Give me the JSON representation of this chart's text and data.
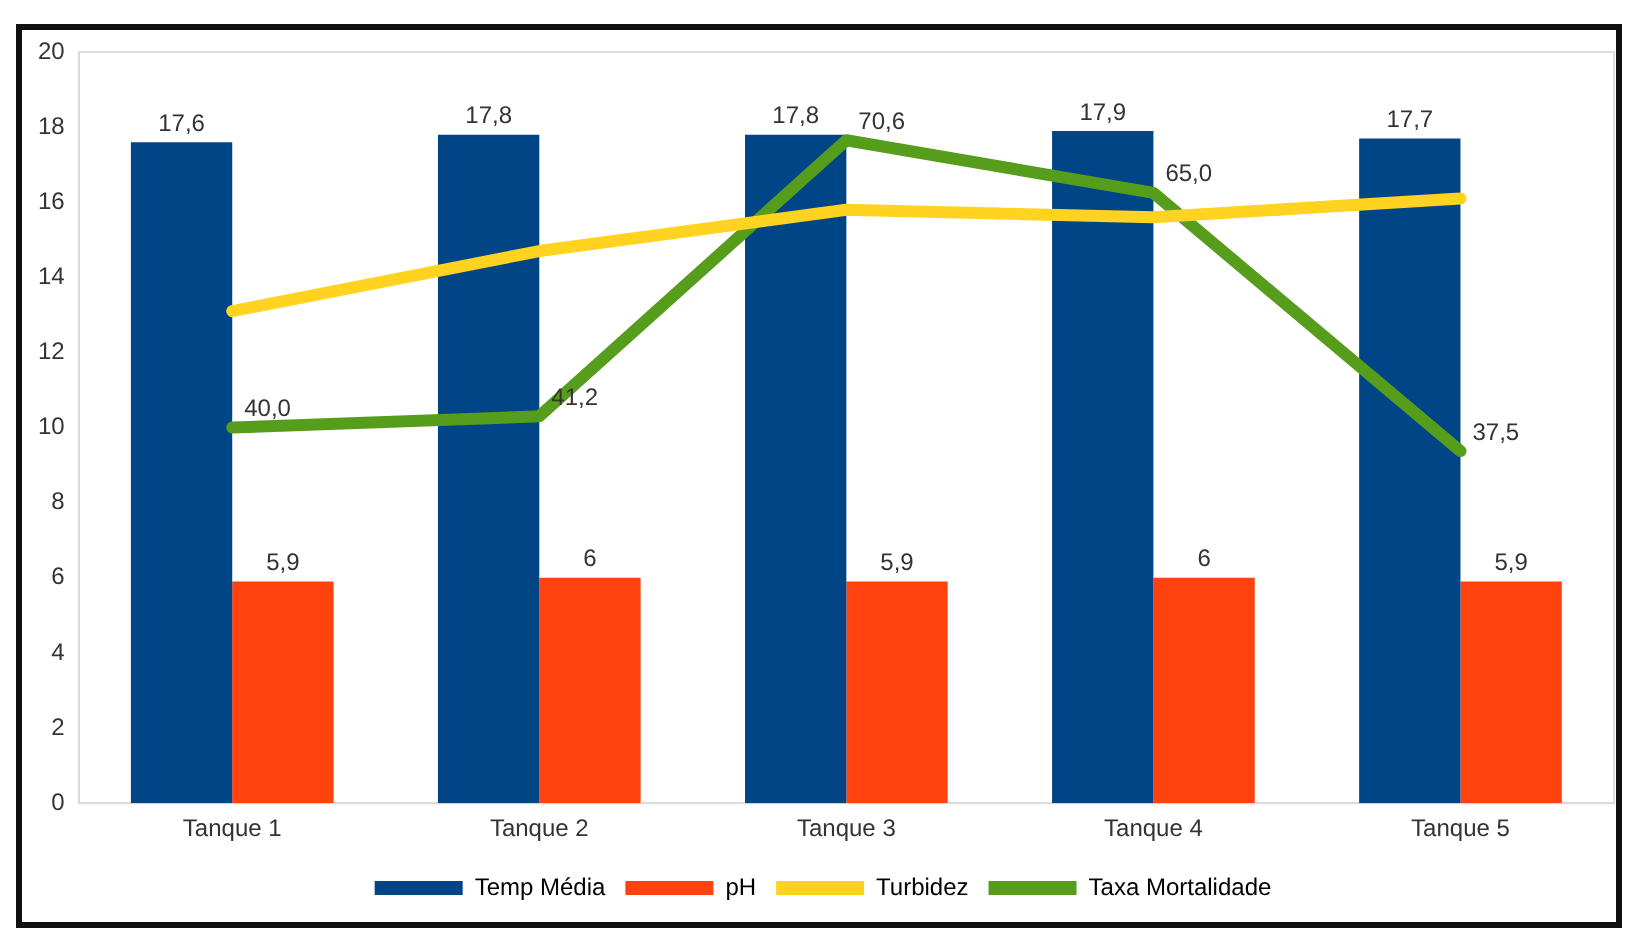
{
  "chart_data": {
    "type": "bar",
    "categories": [
      "Tanque 1",
      "Tanque 2",
      "Tanque 3",
      "Tanque 4",
      "Tanque 5"
    ],
    "series": [
      {
        "name": "Temp Média",
        "color": "#004586",
        "values": [
          17.6,
          17.8,
          17.8,
          17.9,
          17.7
        ],
        "value_labels": [
          "17,6",
          "17,8",
          "17,8",
          "17,9",
          "17,7"
        ]
      },
      {
        "name": "pH",
        "color": "#ff420e",
        "values": [
          5.9,
          6,
          5.9,
          6,
          5.9
        ],
        "value_labels": [
          "5,9",
          "6",
          "5,9",
          "6",
          "5,9"
        ]
      },
      {
        "name": "Turbidez",
        "type": "line",
        "color": "#ffd320",
        "values": [
          13.1,
          14.7,
          15.8,
          15.6,
          16.1
        ]
      },
      {
        "name": "Taxa Mortalidade",
        "type": "line",
        "axis": "y2",
        "color": "#579d1c",
        "values": [
          40.0,
          41.2,
          70.6,
          65.0,
          37.5
        ],
        "value_labels": [
          "40,0",
          "41,2",
          "70,6",
          "65,0",
          "37,5"
        ]
      }
    ],
    "ylim": [
      0,
      20
    ],
    "yticks": [
      0,
      2,
      4,
      6,
      8,
      10,
      12,
      14,
      16,
      18,
      20
    ],
    "y2lim": [
      0,
      80
    ],
    "tick_labels": "xy",
    "grid": false,
    "legend": "bottom",
    "marker": "none",
    "line_style": "solid"
  }
}
